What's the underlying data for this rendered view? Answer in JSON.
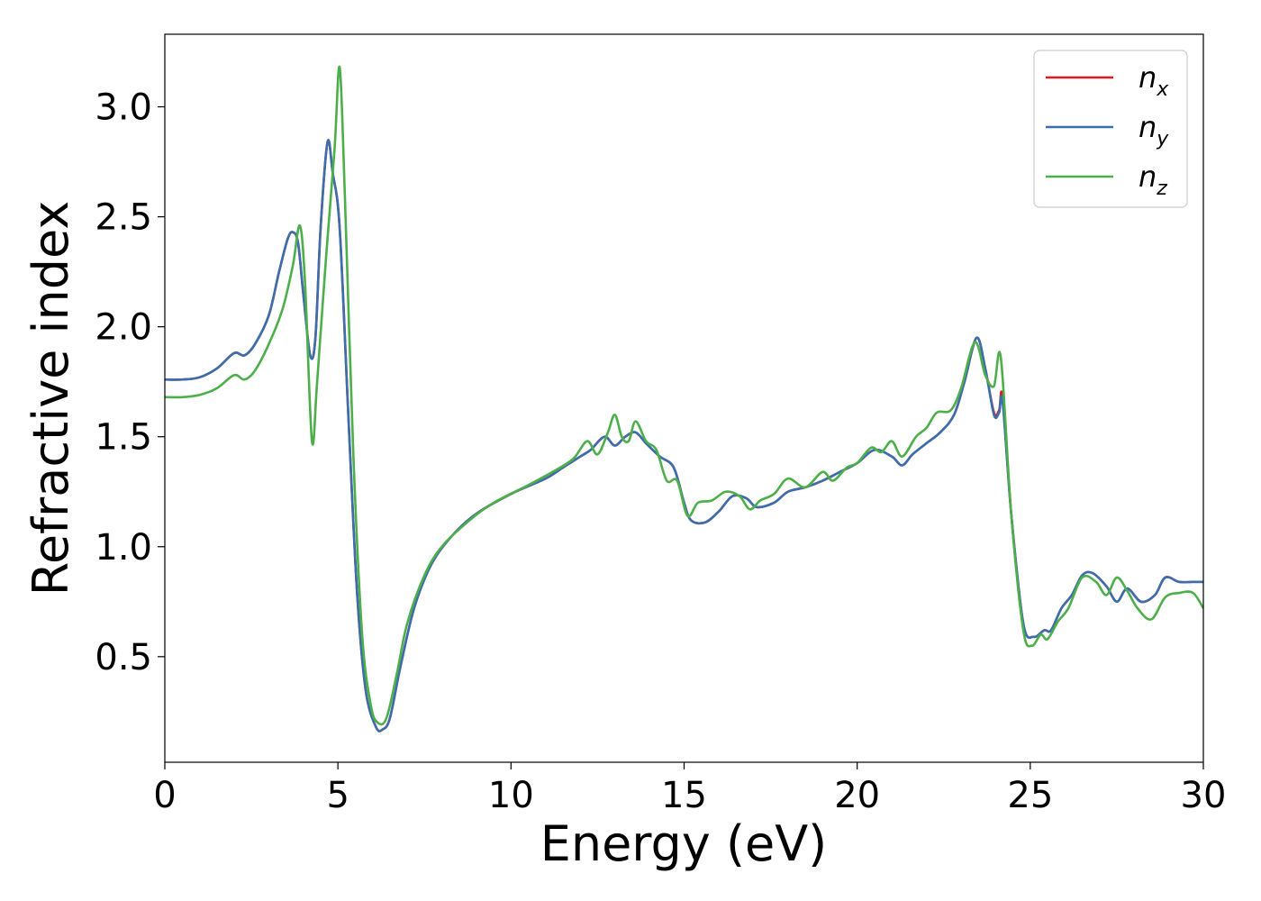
{
  "chart_data": {
    "type": "line",
    "title": "",
    "xlabel": "Energy (eV)",
    "ylabel": "Refractive index",
    "xlim": [
      0,
      30
    ],
    "ylim": [
      0.02,
      3.33
    ],
    "xticks": [
      0,
      5,
      10,
      15,
      20,
      25,
      30
    ],
    "xtick_labels": [
      "0",
      "5",
      "10",
      "15",
      "20",
      "25",
      "30"
    ],
    "yticks": [
      0.5,
      1.0,
      1.5,
      2.0,
      2.5,
      3.0
    ],
    "ytick_labels": [
      "0.5",
      "1.0",
      "1.5",
      "2.0",
      "2.5",
      "3.0"
    ],
    "grid": false,
    "legend_position": "top-right",
    "series": [
      {
        "name": "n",
        "subscript": "x",
        "color": "#e41a1c",
        "points": [
          [
            0,
            1.76
          ],
          [
            0.5,
            1.76
          ],
          [
            1,
            1.77
          ],
          [
            1.5,
            1.81
          ],
          [
            2,
            1.88
          ],
          [
            2.3,
            1.87
          ],
          [
            2.6,
            1.92
          ],
          [
            3,
            2.05
          ],
          [
            3.3,
            2.25
          ],
          [
            3.55,
            2.4
          ],
          [
            3.7,
            2.43
          ],
          [
            3.85,
            2.38
          ],
          [
            4,
            2.15
          ],
          [
            4.2,
            1.87
          ],
          [
            4.35,
            1.95
          ],
          [
            4.5,
            2.45
          ],
          [
            4.7,
            2.84
          ],
          [
            4.85,
            2.7
          ],
          [
            5.05,
            2.45
          ],
          [
            5.3,
            1.6
          ],
          [
            5.55,
            0.8
          ],
          [
            5.8,
            0.35
          ],
          [
            6.1,
            0.18
          ],
          [
            6.3,
            0.17
          ],
          [
            6.5,
            0.22
          ],
          [
            6.8,
            0.45
          ],
          [
            7.2,
            0.72
          ],
          [
            7.7,
            0.92
          ],
          [
            8.3,
            1.05
          ],
          [
            9,
            1.15
          ],
          [
            10,
            1.24
          ],
          [
            11,
            1.31
          ],
          [
            11.5,
            1.36
          ],
          [
            12,
            1.41
          ],
          [
            12.3,
            1.44
          ],
          [
            12.7,
            1.5
          ],
          [
            13,
            1.46
          ],
          [
            13.3,
            1.5
          ],
          [
            13.6,
            1.52
          ],
          [
            13.9,
            1.47
          ],
          [
            14.3,
            1.41
          ],
          [
            14.7,
            1.36
          ],
          [
            15,
            1.2
          ],
          [
            15.2,
            1.12
          ],
          [
            15.6,
            1.11
          ],
          [
            16,
            1.16
          ],
          [
            16.4,
            1.23
          ],
          [
            16.8,
            1.22
          ],
          [
            17.1,
            1.18
          ],
          [
            17.6,
            1.2
          ],
          [
            18,
            1.25
          ],
          [
            18.5,
            1.27
          ],
          [
            19,
            1.3
          ],
          [
            19.5,
            1.34
          ],
          [
            20,
            1.38
          ],
          [
            20.5,
            1.44
          ],
          [
            21,
            1.41
          ],
          [
            21.3,
            1.37
          ],
          [
            21.6,
            1.42
          ],
          [
            22,
            1.47
          ],
          [
            22.4,
            1.52
          ],
          [
            22.8,
            1.6
          ],
          [
            23.1,
            1.75
          ],
          [
            23.45,
            1.95
          ],
          [
            23.7,
            1.81
          ],
          [
            23.95,
            1.61
          ],
          [
            24.1,
            1.62
          ],
          [
            24.2,
            1.68
          ],
          [
            24.45,
            1.15
          ],
          [
            24.8,
            0.65
          ],
          [
            25.1,
            0.59
          ],
          [
            25.4,
            0.62
          ],
          [
            25.6,
            0.62
          ],
          [
            25.9,
            0.72
          ],
          [
            26.2,
            0.78
          ],
          [
            26.5,
            0.87
          ],
          [
            26.8,
            0.88
          ],
          [
            27.2,
            0.82
          ],
          [
            27.5,
            0.75
          ],
          [
            27.8,
            0.81
          ],
          [
            28.2,
            0.75
          ],
          [
            28.6,
            0.78
          ],
          [
            28.9,
            0.86
          ],
          [
            29.3,
            0.84
          ],
          [
            29.7,
            0.84
          ],
          [
            30,
            0.84
          ]
        ]
      },
      {
        "name": "n",
        "subscript": "y",
        "color": "#3a6fae",
        "points": [
          [
            0,
            1.76
          ],
          [
            0.5,
            1.76
          ],
          [
            1,
            1.77
          ],
          [
            1.5,
            1.81
          ],
          [
            2,
            1.88
          ],
          [
            2.3,
            1.87
          ],
          [
            2.6,
            1.92
          ],
          [
            3,
            2.05
          ],
          [
            3.3,
            2.25
          ],
          [
            3.55,
            2.4
          ],
          [
            3.7,
            2.43
          ],
          [
            3.85,
            2.38
          ],
          [
            4,
            2.15
          ],
          [
            4.2,
            1.87
          ],
          [
            4.35,
            1.95
          ],
          [
            4.5,
            2.45
          ],
          [
            4.7,
            2.84
          ],
          [
            4.85,
            2.7
          ],
          [
            5.05,
            2.45
          ],
          [
            5.3,
            1.6
          ],
          [
            5.55,
            0.8
          ],
          [
            5.8,
            0.35
          ],
          [
            6.1,
            0.18
          ],
          [
            6.3,
            0.17
          ],
          [
            6.5,
            0.22
          ],
          [
            6.8,
            0.45
          ],
          [
            7.2,
            0.72
          ],
          [
            7.7,
            0.92
          ],
          [
            8.3,
            1.05
          ],
          [
            9,
            1.15
          ],
          [
            10,
            1.24
          ],
          [
            11,
            1.31
          ],
          [
            11.5,
            1.36
          ],
          [
            12,
            1.41
          ],
          [
            12.3,
            1.44
          ],
          [
            12.7,
            1.5
          ],
          [
            13,
            1.46
          ],
          [
            13.3,
            1.5
          ],
          [
            13.6,
            1.52
          ],
          [
            13.9,
            1.47
          ],
          [
            14.3,
            1.41
          ],
          [
            14.7,
            1.36
          ],
          [
            15,
            1.2
          ],
          [
            15.2,
            1.12
          ],
          [
            15.6,
            1.11
          ],
          [
            16,
            1.16
          ],
          [
            16.4,
            1.23
          ],
          [
            16.8,
            1.22
          ],
          [
            17.1,
            1.18
          ],
          [
            17.6,
            1.2
          ],
          [
            18,
            1.25
          ],
          [
            18.5,
            1.27
          ],
          [
            19,
            1.3
          ],
          [
            19.5,
            1.34
          ],
          [
            20,
            1.38
          ],
          [
            20.5,
            1.44
          ],
          [
            21,
            1.41
          ],
          [
            21.3,
            1.37
          ],
          [
            21.6,
            1.42
          ],
          [
            22,
            1.47
          ],
          [
            22.4,
            1.52
          ],
          [
            22.8,
            1.6
          ],
          [
            23.1,
            1.75
          ],
          [
            23.45,
            1.95
          ],
          [
            23.7,
            1.81
          ],
          [
            23.95,
            1.6
          ],
          [
            24.1,
            1.61
          ],
          [
            24.2,
            1.66
          ],
          [
            24.45,
            1.15
          ],
          [
            24.8,
            0.65
          ],
          [
            25.1,
            0.59
          ],
          [
            25.4,
            0.62
          ],
          [
            25.6,
            0.62
          ],
          [
            25.9,
            0.72
          ],
          [
            26.2,
            0.78
          ],
          [
            26.5,
            0.87
          ],
          [
            26.8,
            0.88
          ],
          [
            27.2,
            0.82
          ],
          [
            27.5,
            0.75
          ],
          [
            27.8,
            0.81
          ],
          [
            28.2,
            0.75
          ],
          [
            28.6,
            0.78
          ],
          [
            28.9,
            0.86
          ],
          [
            29.3,
            0.84
          ],
          [
            29.7,
            0.84
          ],
          [
            30,
            0.84
          ]
        ]
      },
      {
        "name": "n",
        "subscript": "z",
        "color": "#4daf4a",
        "points": [
          [
            0,
            1.68
          ],
          [
            0.5,
            1.68
          ],
          [
            1,
            1.69
          ],
          [
            1.5,
            1.72
          ],
          [
            2,
            1.78
          ],
          [
            2.3,
            1.76
          ],
          [
            2.6,
            1.8
          ],
          [
            3,
            1.92
          ],
          [
            3.4,
            2.08
          ],
          [
            3.7,
            2.28
          ],
          [
            3.9,
            2.46
          ],
          [
            4.05,
            2.2
          ],
          [
            4.25,
            1.48
          ],
          [
            4.4,
            1.75
          ],
          [
            4.65,
            2.3
          ],
          [
            4.9,
            2.8
          ],
          [
            5.05,
            3.18
          ],
          [
            5.2,
            2.6
          ],
          [
            5.45,
            1.4
          ],
          [
            5.7,
            0.6
          ],
          [
            5.95,
            0.28
          ],
          [
            6.15,
            0.2
          ],
          [
            6.4,
            0.22
          ],
          [
            6.7,
            0.42
          ],
          [
            7,
            0.65
          ],
          [
            7.5,
            0.87
          ],
          [
            8,
            1
          ],
          [
            8.8,
            1.12
          ],
          [
            9.5,
            1.2
          ],
          [
            10.5,
            1.28
          ],
          [
            11.2,
            1.34
          ],
          [
            11.8,
            1.4
          ],
          [
            12.2,
            1.48
          ],
          [
            12.5,
            1.42
          ],
          [
            12.8,
            1.52
          ],
          [
            13,
            1.6
          ],
          [
            13.2,
            1.5
          ],
          [
            13.4,
            1.48
          ],
          [
            13.6,
            1.57
          ],
          [
            13.9,
            1.48
          ],
          [
            14.2,
            1.44
          ],
          [
            14.5,
            1.3
          ],
          [
            14.8,
            1.3
          ],
          [
            15.1,
            1.14
          ],
          [
            15.4,
            1.2
          ],
          [
            15.8,
            1.21
          ],
          [
            16.2,
            1.25
          ],
          [
            16.6,
            1.23
          ],
          [
            16.9,
            1.17
          ],
          [
            17.2,
            1.21
          ],
          [
            17.6,
            1.24
          ],
          [
            18,
            1.31
          ],
          [
            18.5,
            1.27
          ],
          [
            19,
            1.34
          ],
          [
            19.3,
            1.3
          ],
          [
            19.7,
            1.36
          ],
          [
            20,
            1.38
          ],
          [
            20.4,
            1.45
          ],
          [
            20.7,
            1.43
          ],
          [
            21,
            1.48
          ],
          [
            21.3,
            1.41
          ],
          [
            21.7,
            1.5
          ],
          [
            22,
            1.54
          ],
          [
            22.3,
            1.61
          ],
          [
            22.7,
            1.62
          ],
          [
            23,
            1.72
          ],
          [
            23.4,
            1.93
          ],
          [
            23.7,
            1.78
          ],
          [
            23.95,
            1.73
          ],
          [
            24.15,
            1.86
          ],
          [
            24.45,
            1.15
          ],
          [
            24.8,
            0.62
          ],
          [
            25.05,
            0.55
          ],
          [
            25.3,
            0.6
          ],
          [
            25.5,
            0.58
          ],
          [
            25.8,
            0.66
          ],
          [
            26.1,
            0.72
          ],
          [
            26.5,
            0.86
          ],
          [
            26.9,
            0.84
          ],
          [
            27.2,
            0.78
          ],
          [
            27.5,
            0.86
          ],
          [
            27.8,
            0.8
          ],
          [
            28.1,
            0.72
          ],
          [
            28.5,
            0.67
          ],
          [
            28.9,
            0.77
          ],
          [
            29.3,
            0.79
          ],
          [
            29.7,
            0.79
          ],
          [
            30,
            0.72
          ]
        ]
      }
    ]
  }
}
